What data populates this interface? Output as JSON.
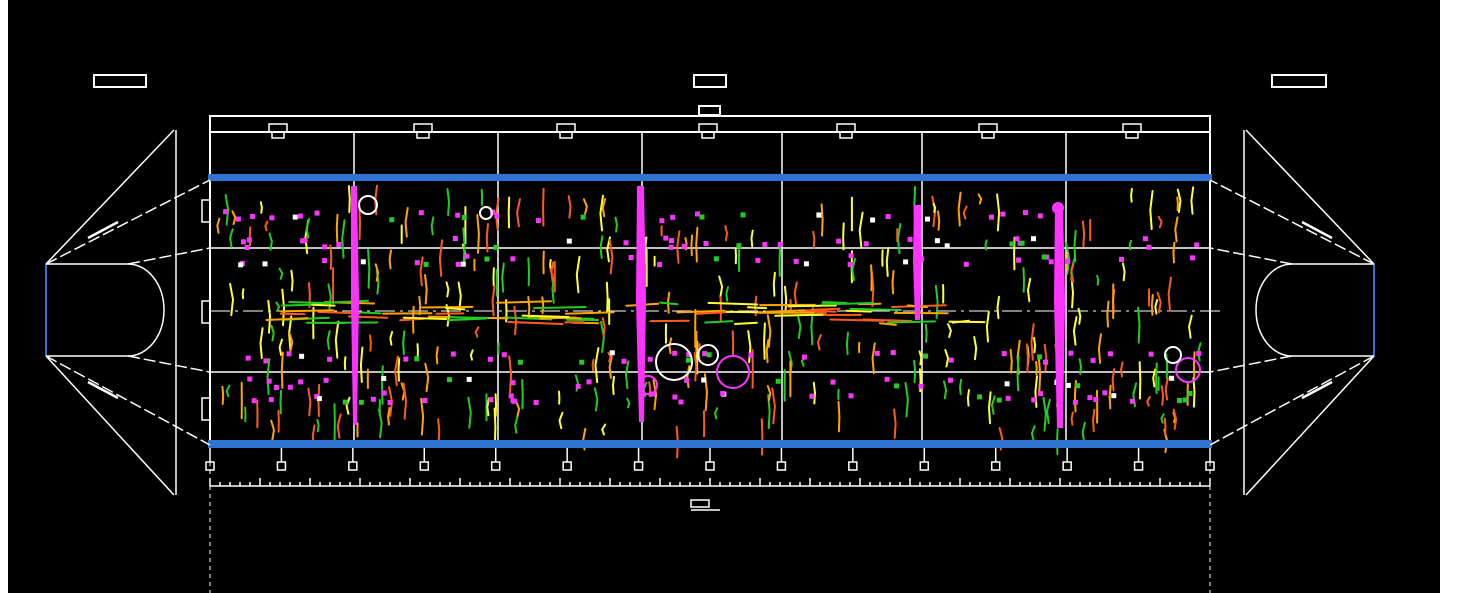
{
  "drawing": {
    "background": "#000000",
    "outline_color": "#ffffff",
    "edge_color": "#2f74d0",
    "crack_colors": [
      "#ff00ff",
      "#22cc22",
      "#ffa500",
      "#ffff33",
      "#ff5a1e",
      "#ffffff"
    ],
    "major_marker_color": "#ff33ff"
  }
}
